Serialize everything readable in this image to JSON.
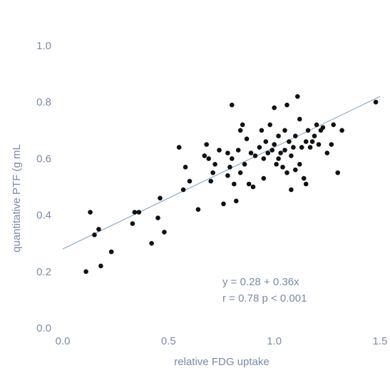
{
  "chart_data": {
    "type": "scatter",
    "xlabel": "relative FDG uptake",
    "ylabel": "quantitative PTF (g mL",
    "xlim": [
      0.0,
      1.5
    ],
    "ylim": [
      0.0,
      1.0
    ],
    "x_ticks": [
      "0.0",
      "0.5",
      "1.0",
      "1.5"
    ],
    "y_ticks": [
      "0.0",
      "0.2",
      "0.4",
      "0.6",
      "0.8",
      "1.0"
    ],
    "grid": false,
    "regression": {
      "intercept": 0.28,
      "slope": 0.36,
      "x_range": [
        0.0,
        1.5
      ]
    },
    "annotations": [
      "y = 0.28 + 0.36x",
      "r = 0.78    p < 0.001"
    ],
    "colors": {
      "points": "#111111",
      "line": "#7fa6c8",
      "text": "#7a8aa6"
    },
    "points": [
      [
        0.11,
        0.2
      ],
      [
        0.13,
        0.41
      ],
      [
        0.15,
        0.33
      ],
      [
        0.17,
        0.35
      ],
      [
        0.18,
        0.22
      ],
      [
        0.23,
        0.27
      ],
      [
        0.33,
        0.37
      ],
      [
        0.34,
        0.41
      ],
      [
        0.36,
        0.41
      ],
      [
        0.42,
        0.3
      ],
      [
        0.45,
        0.39
      ],
      [
        0.46,
        0.46
      ],
      [
        0.48,
        0.34
      ],
      [
        0.55,
        0.64
      ],
      [
        0.57,
        0.49
      ],
      [
        0.58,
        0.57
      ],
      [
        0.6,
        0.52
      ],
      [
        0.64,
        0.42
      ],
      [
        0.67,
        0.61
      ],
      [
        0.68,
        0.65
      ],
      [
        0.69,
        0.6
      ],
      [
        0.7,
        0.52
      ],
      [
        0.71,
        0.55
      ],
      [
        0.72,
        0.58
      ],
      [
        0.74,
        0.63
      ],
      [
        0.76,
        0.44
      ],
      [
        0.78,
        0.62
      ],
      [
        0.78,
        0.54
      ],
      [
        0.79,
        0.57
      ],
      [
        0.8,
        0.6
      ],
      [
        0.8,
        0.79
      ],
      [
        0.81,
        0.51
      ],
      [
        0.82,
        0.45
      ],
      [
        0.83,
        0.63
      ],
      [
        0.84,
        0.7
      ],
      [
        0.84,
        0.55
      ],
      [
        0.85,
        0.72
      ],
      [
        0.86,
        0.58
      ],
      [
        0.87,
        0.67
      ],
      [
        0.88,
        0.51
      ],
      [
        0.89,
        0.62
      ],
      [
        0.9,
        0.5
      ],
      [
        0.91,
        0.61
      ],
      [
        0.93,
        0.64
      ],
      [
        0.94,
        0.7
      ],
      [
        0.95,
        0.6
      ],
      [
        0.95,
        0.53
      ],
      [
        0.96,
        0.66
      ],
      [
        0.97,
        0.62
      ],
      [
        0.98,
        0.72
      ],
      [
        0.99,
        0.63
      ],
      [
        1.0,
        0.78
      ],
      [
        1.0,
        0.65
      ],
      [
        1.01,
        0.58
      ],
      [
        1.02,
        0.68
      ],
      [
        1.02,
        0.6
      ],
      [
        1.03,
        0.62
      ],
      [
        1.04,
        0.57
      ],
      [
        1.05,
        0.7
      ],
      [
        1.05,
        0.63
      ],
      [
        1.06,
        0.79
      ],
      [
        1.06,
        0.55
      ],
      [
        1.07,
        0.66
      ],
      [
        1.08,
        0.61
      ],
      [
        1.08,
        0.49
      ],
      [
        1.09,
        0.64
      ],
      [
        1.1,
        0.68
      ],
      [
        1.1,
        0.56
      ],
      [
        1.11,
        0.82
      ],
      [
        1.12,
        0.74
      ],
      [
        1.12,
        0.58
      ],
      [
        1.13,
        0.64
      ],
      [
        1.14,
        0.53
      ],
      [
        1.15,
        0.66
      ],
      [
        1.15,
        0.51
      ],
      [
        1.16,
        0.7
      ],
      [
        1.17,
        0.64
      ],
      [
        1.18,
        0.66
      ],
      [
        1.19,
        0.68
      ],
      [
        1.2,
        0.72
      ],
      [
        1.21,
        0.65
      ],
      [
        1.22,
        0.7
      ],
      [
        1.23,
        0.71
      ],
      [
        1.25,
        0.62
      ],
      [
        1.27,
        0.65
      ],
      [
        1.28,
        0.72
      ],
      [
        1.3,
        0.55
      ],
      [
        1.32,
        0.7
      ],
      [
        1.48,
        0.8
      ]
    ]
  }
}
